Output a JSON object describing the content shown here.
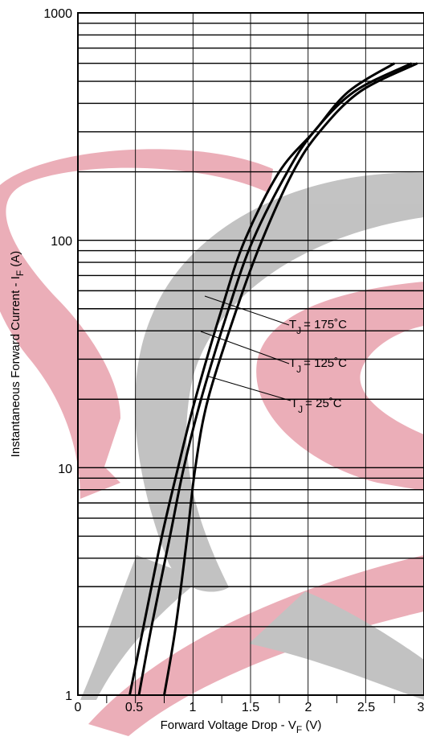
{
  "chart_data": {
    "type": "line",
    "x_scale": "linear",
    "y_scale": "log",
    "grid": true,
    "xlabel": {
      "main": "Forward Voltage Drop - V",
      "sub": "F",
      "unit": " (V)"
    },
    "ylabel": {
      "main": "Instantaneous Forward Current - I",
      "sub": "F",
      "unit": " (A)"
    },
    "xlim": [
      0,
      3
    ],
    "ylim": [
      1,
      1000
    ],
    "x_ticks": [
      "0",
      "0.5",
      "1",
      "1.5",
      "2",
      "2.5",
      "3"
    ],
    "y_ticks": [
      "1",
      "10",
      "100",
      "1000"
    ],
    "series": [
      {
        "name": "T_J = 175°C",
        "label": {
          "pre": "T",
          "sub": "J",
          "post": "= 175˚C"
        },
        "points": [
          [
            0.45,
            1
          ],
          [
            0.57,
            2
          ],
          [
            0.73,
            5
          ],
          [
            0.87,
            10
          ],
          [
            1.02,
            20
          ],
          [
            1.25,
            50
          ],
          [
            1.45,
            100
          ],
          [
            1.75,
            200
          ],
          [
            2.05,
            300
          ],
          [
            2.35,
            450
          ],
          [
            2.75,
            600
          ]
        ]
      },
      {
        "name": "T_J = 125°C",
        "label": {
          "pre": "T",
          "sub": "J",
          "post": "= 125˚C"
        },
        "points": [
          [
            0.53,
            1
          ],
          [
            0.64,
            2
          ],
          [
            0.8,
            5
          ],
          [
            0.92,
            10
          ],
          [
            1.07,
            20
          ],
          [
            1.31,
            50
          ],
          [
            1.52,
            100
          ],
          [
            1.82,
            200
          ],
          [
            2.05,
            300
          ],
          [
            2.4,
            450
          ],
          [
            2.9,
            600
          ]
        ]
      },
      {
        "name": "T_J = 25°C",
        "label": {
          "pre": "T",
          "sub": "J",
          "post": "=   25˚C"
        },
        "points": [
          [
            0.75,
            1
          ],
          [
            0.85,
            2
          ],
          [
            0.95,
            5
          ],
          [
            1.02,
            10
          ],
          [
            1.13,
            20
          ],
          [
            1.38,
            50
          ],
          [
            1.6,
            100
          ],
          [
            1.87,
            200
          ],
          [
            2.1,
            300
          ],
          [
            2.45,
            450
          ],
          [
            2.95,
            600
          ]
        ]
      }
    ]
  }
}
